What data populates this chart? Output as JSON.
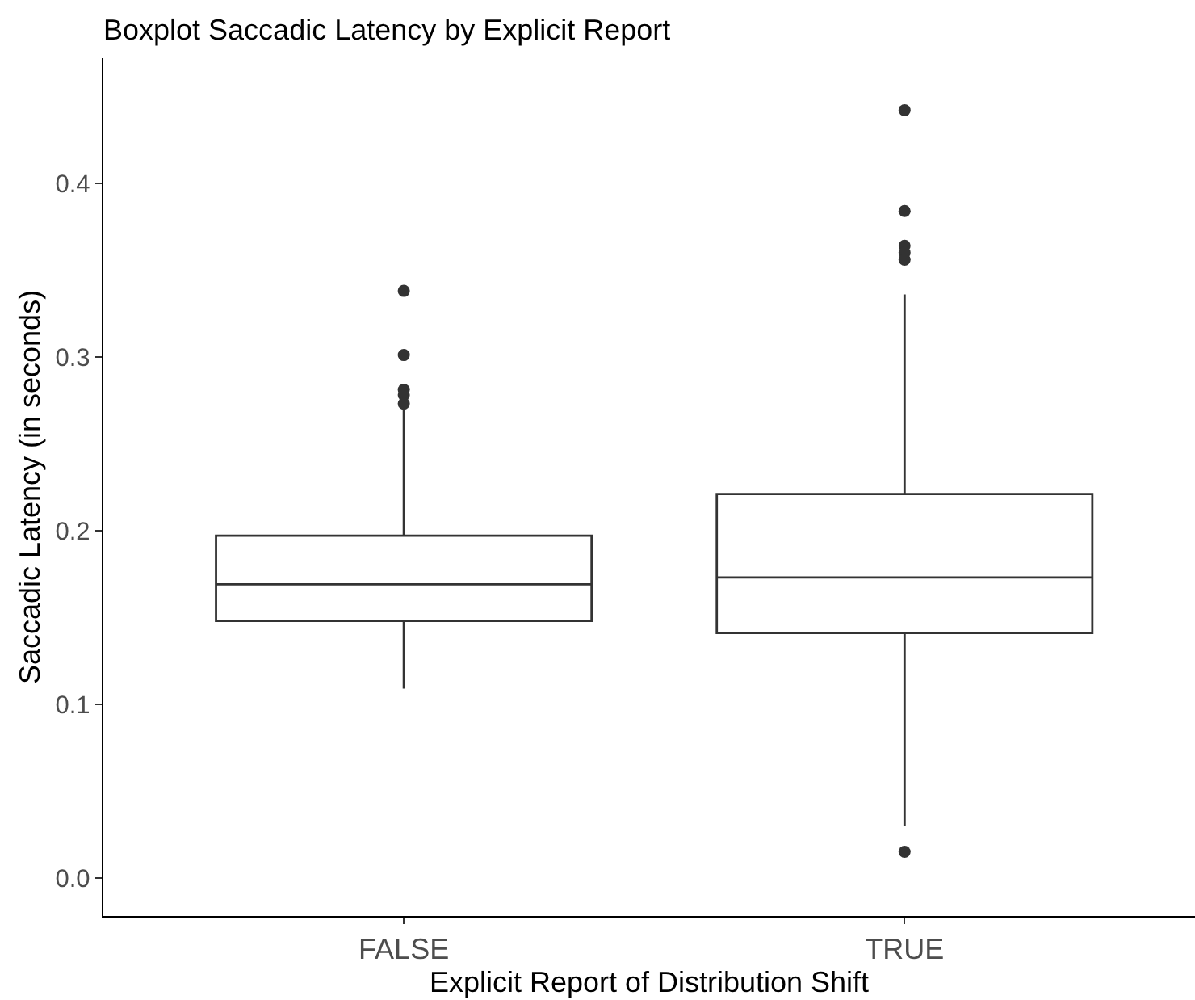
{
  "chart_data": {
    "type": "box",
    "title": "Boxplot Saccadic Latency by Explicit Report",
    "xlabel": "Explicit Report of Distribution Shift",
    "ylabel": "Saccadic Latency (in seconds)",
    "categories": [
      "FALSE",
      "TRUE"
    ],
    "series": [
      {
        "color": "#333333",
        "boxes": [
          {
            "low": 0.109,
            "q1": 0.148,
            "median": 0.169,
            "q3": 0.197,
            "high": 0.271,
            "outliers": [
              0.338,
              0.301,
              0.281,
              0.278,
              0.273
            ]
          },
          {
            "low": 0.03,
            "q1": 0.141,
            "median": 0.173,
            "q3": 0.221,
            "high": 0.336,
            "outliers": [
              0.442,
              0.384,
              0.364,
              0.36,
              0.356,
              0.015
            ]
          }
        ]
      }
    ],
    "ylim": [
      -0.022,
      0.472
    ],
    "yticks": [
      {
        "value": 0,
        "label": "0.0"
      },
      0.1,
      0.2,
      0.3,
      0.4
    ]
  }
}
